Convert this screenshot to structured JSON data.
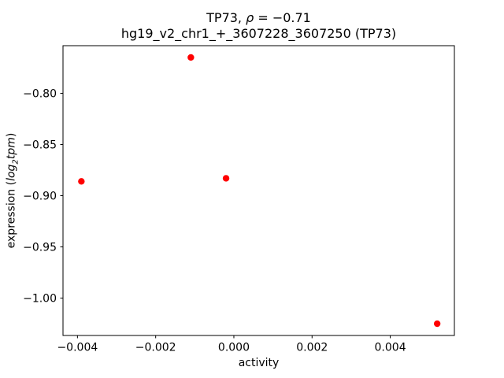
{
  "figure": {
    "title_line1": {
      "gene_prefix": "TP73, ",
      "rho_symbol": "ρ",
      "rho_value": " = −0.71"
    },
    "title_line2": "hg19_v2_chr1_+_3607228_3607250 (TP73)",
    "xlabel": "activity",
    "ylabel": {
      "prefix": "expression (",
      "log_word": "log",
      "sub": "2",
      "unit_word": "tpm",
      "suffix": ")"
    }
  },
  "chart_data": {
    "type": "scatter",
    "title": "TP73, ρ = −0.71",
    "subtitle": "hg19_v2_chr1_+_3607228_3607250 (TP73)",
    "xlabel": "activity",
    "ylabel": "expression (log2 tpm)",
    "marker_color": "#ff0000",
    "marker_radius_px": 4.2,
    "axis_color": "#000000",
    "grid": false,
    "legend": null,
    "points": [
      {
        "x": -0.0039,
        "y": -0.886
      },
      {
        "x": -0.0011,
        "y": -0.765
      },
      {
        "x": -0.0002,
        "y": -0.883
      },
      {
        "x": 0.0052,
        "y": -1.025
      }
    ],
    "xlim": [
      -0.00437,
      0.00564
    ],
    "ylim": [
      -1.0365,
      -0.7535
    ],
    "xticks": {
      "values": [
        -0.004,
        -0.002,
        0.0,
        0.002,
        0.004
      ],
      "labels": [
        "−0.004",
        "−0.002",
        "0.000",
        "0.002",
        "0.004"
      ]
    },
    "yticks": {
      "values": [
        -0.8,
        -0.85,
        -0.9,
        -0.95,
        -1.0
      ],
      "labels": [
        "−0.80",
        "−0.85",
        "−0.90",
        "−0.95",
        "−1.00"
      ]
    }
  }
}
